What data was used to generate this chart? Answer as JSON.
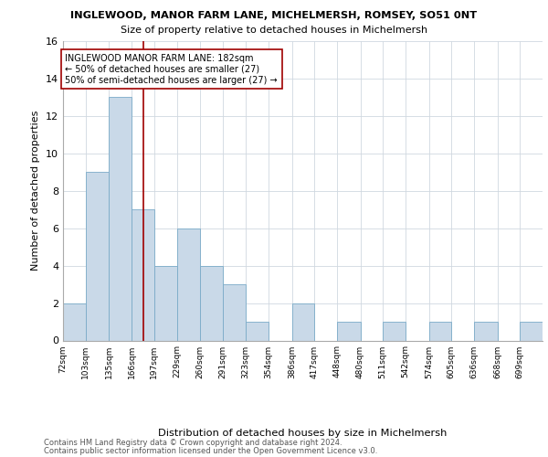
{
  "title1": "INGLEWOOD, MANOR FARM LANE, MICHELMERSH, ROMSEY, SO51 0NT",
  "title2": "Size of property relative to detached houses in Michelmersh",
  "xlabel": "Distribution of detached houses by size in Michelmersh",
  "ylabel": "Number of detached properties",
  "footnote1": "Contains HM Land Registry data © Crown copyright and database right 2024.",
  "footnote2": "Contains public sector information licensed under the Open Government Licence v3.0.",
  "bin_labels": [
    "72sqm",
    "103sqm",
    "135sqm",
    "166sqm",
    "197sqm",
    "229sqm",
    "260sqm",
    "291sqm",
    "323sqm",
    "354sqm",
    "386sqm",
    "417sqm",
    "448sqm",
    "480sqm",
    "511sqm",
    "542sqm",
    "574sqm",
    "605sqm",
    "636sqm",
    "668sqm",
    "699sqm"
  ],
  "counts": [
    2,
    9,
    13,
    7,
    4,
    6,
    4,
    3,
    1,
    0,
    2,
    0,
    1,
    0,
    1,
    0,
    1,
    0,
    1,
    0,
    1
  ],
  "bar_color": "#c9d9e8",
  "bar_edge_color": "#7aaac8",
  "grid_color": "#d0d8e0",
  "vline_x": 182,
  "vline_color": "#a00000",
  "annotation_text": "INGLEWOOD MANOR FARM LANE: 182sqm\n← 50% of detached houses are smaller (27)\n50% of semi-detached houses are larger (27) →",
  "annotation_box_color": "white",
  "annotation_box_edge": "#a00000",
  "ylim": [
    0,
    16
  ],
  "bin_edges": [
    72,
    103,
    135,
    166,
    197,
    229,
    260,
    291,
    323,
    354,
    386,
    417,
    448,
    480,
    511,
    542,
    574,
    605,
    636,
    668,
    699,
    730
  ]
}
